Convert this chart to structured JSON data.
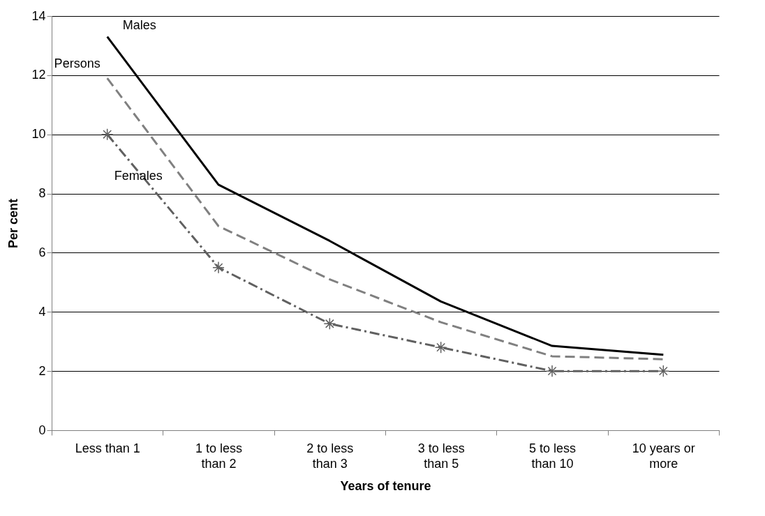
{
  "chart_data": {
    "type": "line",
    "xlabel": "Years of tenure",
    "ylabel": "Per cent",
    "categories": [
      "Less than 1",
      "1 to less than 2",
      "2 to less than 3",
      "3 to less than 5",
      "5 to less than 10",
      "10 years or more"
    ],
    "series": [
      {
        "name": "Males",
        "color": "#000000",
        "line_style": "solid",
        "marker": "none",
        "values": [
          13.3,
          8.3,
          6.4,
          4.35,
          2.85,
          2.55
        ]
      },
      {
        "name": "Persons",
        "color": "#808080",
        "line_style": "dashed",
        "marker": "none",
        "values": [
          11.9,
          6.9,
          5.1,
          3.65,
          2.5,
          2.4
        ]
      },
      {
        "name": "Females",
        "color": "#606060",
        "line_style": "dashdot",
        "marker": "cross",
        "values": [
          10.0,
          5.5,
          3.6,
          2.8,
          2.0,
          2.0
        ]
      }
    ],
    "ylim": [
      0,
      14
    ],
    "yticks": [
      0,
      2,
      4,
      6,
      8,
      10,
      12,
      14
    ],
    "grid": "y",
    "legend": false
  }
}
